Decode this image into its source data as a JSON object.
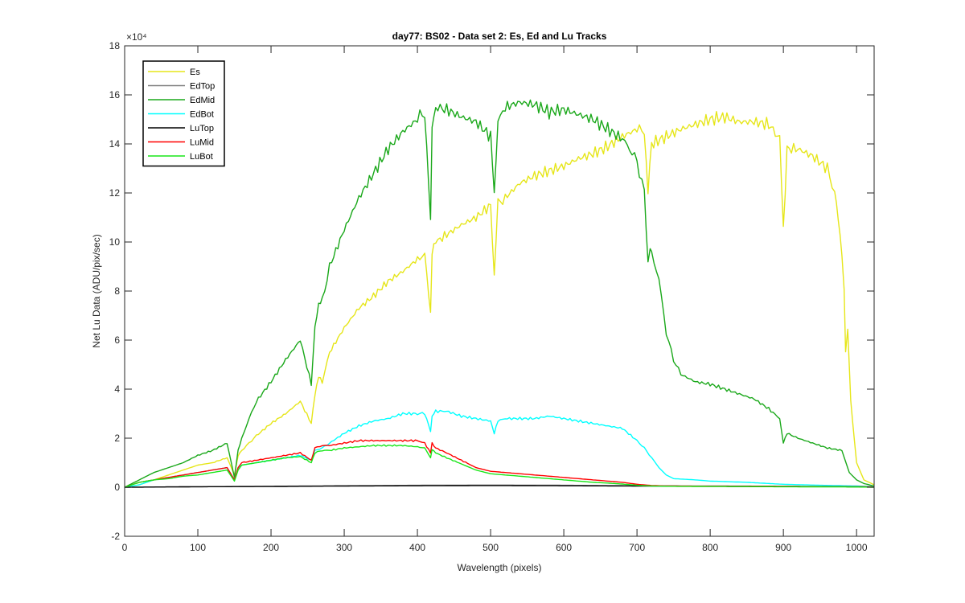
{
  "chart_data": {
    "type": "line",
    "title": "day77: BS02 - Data set 2: Es, Ed and Lu Tracks",
    "xlabel": "Wavelength (pixels)",
    "ylabel": "Net Lu Data (ADU/pix/sec)",
    "y_exponent_label": "×10⁴",
    "xlim": [
      0,
      1024
    ],
    "ylim": [
      -2,
      18
    ],
    "y_scale_note": "values in units of 10^4",
    "xticks": [
      0,
      100,
      200,
      300,
      400,
      500,
      600,
      700,
      800,
      900,
      1000
    ],
    "yticks": [
      -2,
      0,
      2,
      4,
      6,
      8,
      10,
      12,
      14,
      16,
      18
    ],
    "legend_position": "top-left",
    "series": [
      {
        "name": "Es",
        "color": "#e6e619",
        "x": [
          0,
          20,
          40,
          60,
          80,
          100,
          120,
          140,
          150,
          155,
          160,
          170,
          180,
          200,
          220,
          240,
          255,
          260,
          265,
          270,
          280,
          300,
          320,
          340,
          360,
          380,
          400,
          410,
          418,
          420,
          425,
          440,
          460,
          480,
          500,
          505,
          510,
          520,
          540,
          560,
          580,
          600,
          620,
          640,
          660,
          680,
          700,
          710,
          715,
          720,
          740,
          760,
          780,
          800,
          820,
          840,
          860,
          880,
          895,
          900,
          905,
          920,
          940,
          960,
          970,
          975,
          980,
          983,
          985,
          988,
          992,
          1000,
          1010,
          1024
        ],
        "values": [
          0,
          0.1,
          0.3,
          0.5,
          0.7,
          0.9,
          1.0,
          1.2,
          0.5,
          1.3,
          1.5,
          1.8,
          2.1,
          2.6,
          3.0,
          3.5,
          2.6,
          3.8,
          4.5,
          4.3,
          5.5,
          6.5,
          7.3,
          7.8,
          8.4,
          8.8,
          9.3,
          9.5,
          7.1,
          9.6,
          10.0,
          10.3,
          10.7,
          11.0,
          11.5,
          8.6,
          11.6,
          11.8,
          12.4,
          12.7,
          12.9,
          13.1,
          13.4,
          13.6,
          13.9,
          14.3,
          14.6,
          14.5,
          12.1,
          14.0,
          14.3,
          14.6,
          14.8,
          15.0,
          15.1,
          14.9,
          14.9,
          14.8,
          14.2,
          10.5,
          13.8,
          13.8,
          13.5,
          13.0,
          12.0,
          11.0,
          9.5,
          8.0,
          5.6,
          6.4,
          3.5,
          1.0,
          0.3,
          0.1
        ]
      },
      {
        "name": "EdTop",
        "color": "#808080",
        "x": [
          0,
          100,
          200,
          300,
          400,
          500,
          600,
          700,
          800,
          900,
          1000,
          1024
        ],
        "values": [
          0,
          0.02,
          0.04,
          0.06,
          0.08,
          0.09,
          0.08,
          0.06,
          0.05,
          0.04,
          0.03,
          0.02
        ]
      },
      {
        "name": "EdMid",
        "color": "#1aa81a",
        "x": [
          0,
          20,
          40,
          60,
          80,
          100,
          120,
          140,
          150,
          155,
          160,
          170,
          180,
          200,
          220,
          240,
          255,
          260,
          265,
          270,
          280,
          300,
          320,
          340,
          360,
          380,
          400,
          410,
          418,
          420,
          425,
          440,
          460,
          480,
          500,
          505,
          510,
          520,
          540,
          560,
          580,
          600,
          620,
          640,
          660,
          680,
          690,
          700,
          710,
          715,
          718,
          720,
          730,
          740,
          750,
          760,
          780,
          800,
          820,
          840,
          860,
          880,
          895,
          900,
          905,
          920,
          940,
          960,
          980,
          990,
          1000,
          1010,
          1024
        ],
        "values": [
          0,
          0.3,
          0.6,
          0.8,
          1.0,
          1.3,
          1.5,
          1.8,
          0.4,
          1.5,
          2.0,
          2.8,
          3.5,
          4.3,
          5.2,
          6.0,
          4.2,
          6.5,
          7.5,
          7.6,
          9.0,
          10.5,
          11.8,
          12.8,
          13.8,
          14.5,
          15.0,
          15.3,
          10.9,
          14.8,
          15.5,
          15.4,
          15.1,
          14.9,
          14.3,
          12.0,
          14.9,
          15.5,
          15.7,
          15.6,
          15.3,
          15.4,
          15.2,
          15.0,
          14.6,
          14.2,
          13.8,
          13.3,
          12.0,
          9.1,
          9.8,
          9.5,
          8.5,
          6.3,
          5.2,
          4.6,
          4.3,
          4.2,
          4.0,
          3.8,
          3.6,
          3.2,
          2.8,
          1.8,
          2.2,
          2.0,
          1.8,
          1.6,
          1.5,
          0.6,
          0.3,
          0.15,
          0.05
        ]
      },
      {
        "name": "EdBot",
        "color": "#00ffff",
        "x": [
          0,
          20,
          40,
          60,
          80,
          100,
          120,
          140,
          150,
          155,
          160,
          180,
          200,
          220,
          240,
          255,
          260,
          270,
          280,
          300,
          320,
          340,
          360,
          380,
          400,
          410,
          418,
          420,
          425,
          440,
          460,
          480,
          500,
          505,
          510,
          520,
          540,
          560,
          580,
          600,
          620,
          640,
          660,
          680,
          700,
          710,
          720,
          730,
          740,
          750,
          780,
          800,
          850,
          900,
          950,
          1000,
          1024
        ],
        "values": [
          0,
          0.1,
          0.3,
          0.4,
          0.5,
          0.6,
          0.7,
          0.8,
          0.3,
          0.8,
          0.9,
          1.0,
          1.1,
          1.2,
          1.3,
          1.1,
          1.5,
          1.6,
          1.8,
          2.2,
          2.5,
          2.7,
          2.8,
          3.0,
          3.0,
          3.0,
          2.3,
          2.9,
          3.1,
          3.1,
          2.9,
          2.8,
          2.7,
          2.2,
          2.7,
          2.8,
          2.8,
          2.8,
          2.9,
          2.8,
          2.7,
          2.6,
          2.5,
          2.4,
          1.9,
          1.6,
          1.2,
          0.8,
          0.5,
          0.35,
          0.3,
          0.25,
          0.2,
          0.12,
          0.08,
          0.05,
          0.02
        ]
      },
      {
        "name": "LuTop",
        "color": "#000000",
        "x": [
          0,
          100,
          200,
          300,
          400,
          500,
          600,
          700,
          800,
          900,
          1000,
          1024
        ],
        "values": [
          0,
          0.02,
          0.03,
          0.05,
          0.06,
          0.07,
          0.06,
          0.05,
          0.04,
          0.03,
          0.02,
          0.01
        ]
      },
      {
        "name": "LuMid",
        "color": "#ff0000",
        "x": [
          0,
          20,
          40,
          60,
          80,
          100,
          120,
          140,
          150,
          155,
          160,
          180,
          200,
          220,
          240,
          255,
          260,
          270,
          280,
          300,
          320,
          340,
          360,
          380,
          400,
          410,
          418,
          420,
          425,
          440,
          460,
          480,
          500,
          520,
          540,
          560,
          580,
          600,
          620,
          640,
          660,
          680,
          700,
          720,
          740,
          800,
          900,
          1000,
          1024
        ],
        "values": [
          0,
          0.2,
          0.3,
          0.4,
          0.5,
          0.6,
          0.7,
          0.8,
          0.3,
          0.8,
          1.0,
          1.1,
          1.2,
          1.3,
          1.4,
          1.1,
          1.6,
          1.7,
          1.7,
          1.8,
          1.9,
          1.9,
          1.9,
          1.9,
          1.9,
          1.8,
          1.4,
          1.8,
          1.6,
          1.4,
          1.1,
          0.8,
          0.65,
          0.6,
          0.55,
          0.5,
          0.45,
          0.4,
          0.35,
          0.3,
          0.25,
          0.2,
          0.12,
          0.07,
          0.05,
          0.04,
          0.03,
          0.02,
          0.01
        ]
      },
      {
        "name": "LuBot",
        "color": "#19e619",
        "x": [
          0,
          20,
          40,
          60,
          80,
          100,
          120,
          140,
          150,
          155,
          160,
          180,
          200,
          220,
          240,
          255,
          260,
          270,
          280,
          300,
          320,
          340,
          360,
          380,
          400,
          410,
          418,
          420,
          425,
          440,
          460,
          480,
          500,
          520,
          540,
          560,
          580,
          600,
          620,
          640,
          660,
          680,
          700,
          720,
          740,
          800,
          900,
          1000,
          1024
        ],
        "values": [
          0,
          0.2,
          0.3,
          0.35,
          0.45,
          0.5,
          0.6,
          0.7,
          0.25,
          0.7,
          0.9,
          1.0,
          1.1,
          1.2,
          1.25,
          1.0,
          1.4,
          1.5,
          1.5,
          1.6,
          1.65,
          1.7,
          1.7,
          1.7,
          1.65,
          1.6,
          1.2,
          1.55,
          1.4,
          1.2,
          0.95,
          0.7,
          0.55,
          0.5,
          0.45,
          0.4,
          0.35,
          0.3,
          0.25,
          0.2,
          0.17,
          0.13,
          0.08,
          0.05,
          0.04,
          0.03,
          0.02,
          0.01,
          0.0
        ]
      }
    ]
  }
}
